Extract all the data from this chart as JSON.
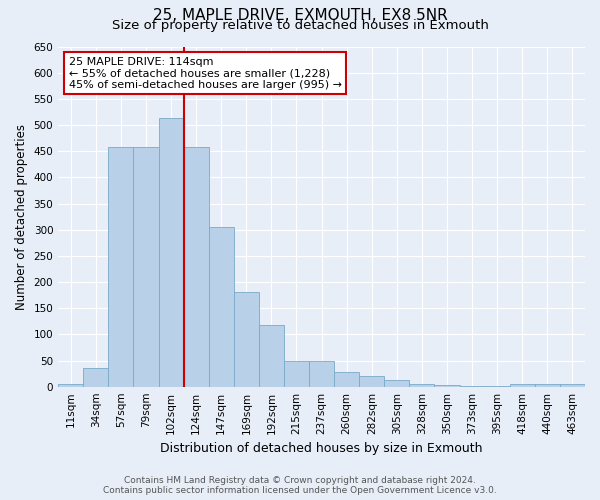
{
  "title": "25, MAPLE DRIVE, EXMOUTH, EX8 5NR",
  "subtitle": "Size of property relative to detached houses in Exmouth",
  "xlabel": "Distribution of detached houses by size in Exmouth",
  "ylabel": "Number of detached properties",
  "footer_line1": "Contains HM Land Registry data © Crown copyright and database right 2024.",
  "footer_line2": "Contains public sector information licensed under the Open Government Licence v3.0.",
  "bar_labels": [
    "11sqm",
    "34sqm",
    "57sqm",
    "79sqm",
    "102sqm",
    "124sqm",
    "147sqm",
    "169sqm",
    "192sqm",
    "215sqm",
    "237sqm",
    "260sqm",
    "282sqm",
    "305sqm",
    "328sqm",
    "350sqm",
    "373sqm",
    "395sqm",
    "418sqm",
    "440sqm",
    "463sqm"
  ],
  "bar_values": [
    5,
    35,
    458,
    458,
    513,
    458,
    305,
    181,
    118,
    50,
    50,
    28,
    20,
    13,
    5,
    4,
    2,
    1,
    5,
    6,
    5
  ],
  "bar_color": "#b8d0e8",
  "bar_edge_color": "#7aaac8",
  "ylim": [
    0,
    650
  ],
  "yticks": [
    0,
    50,
    100,
    150,
    200,
    250,
    300,
    350,
    400,
    450,
    500,
    550,
    600,
    650
  ],
  "vline_after_bar": 4,
  "vline_color": "#cc0000",
  "annotation_title": "25 MAPLE DRIVE: 114sqm",
  "annotation_line2": "← 55% of detached houses are smaller (1,228)",
  "annotation_line3": "45% of semi-detached houses are larger (995) →",
  "annotation_box_facecolor": "#ffffff",
  "annotation_box_edgecolor": "#cc0000",
  "background_color": "#e8eef8",
  "plot_bg_color": "#e8eef8",
  "grid_color": "#ffffff",
  "title_fontsize": 11,
  "subtitle_fontsize": 9.5,
  "ylabel_fontsize": 8.5,
  "xlabel_fontsize": 9,
  "tick_fontsize": 7.5,
  "annotation_fontsize": 8,
  "footer_fontsize": 6.5
}
